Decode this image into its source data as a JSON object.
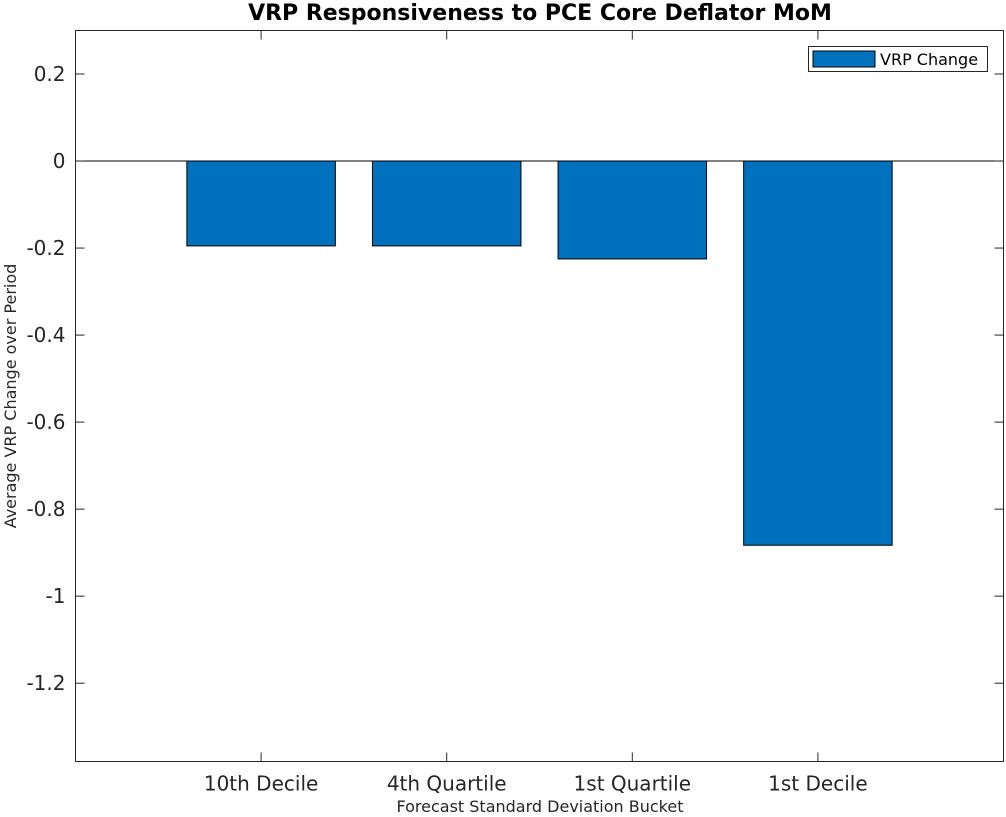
{
  "chart_data": {
    "type": "bar",
    "title": "VRP Responsiveness to PCE Core Deflator MoM",
    "xlabel": "Forecast Standard Deviation Bucket",
    "ylabel": "Average VRP Change over Period",
    "categories": [
      "10th Decile",
      "4th Quartile",
      "1st Quartile",
      "1st Decile"
    ],
    "series": [
      {
        "name": "VRP Change",
        "values": [
          -0.195,
          -0.195,
          -0.225,
          -0.883
        ],
        "color": "#0072BD"
      }
    ],
    "ylim": [
      -1.38,
      0.3
    ],
    "yticks": [
      0.2,
      0,
      -0.2,
      -0.4,
      -0.6,
      -0.8,
      -1,
      -1.2
    ],
    "ytick_labels": [
      "0.2",
      "0",
      "-0.2",
      "-0.4",
      "-0.6",
      "-0.8",
      "-1",
      "-1.2"
    ],
    "grid": false,
    "legend_position": "top-right",
    "zero_line": true
  }
}
